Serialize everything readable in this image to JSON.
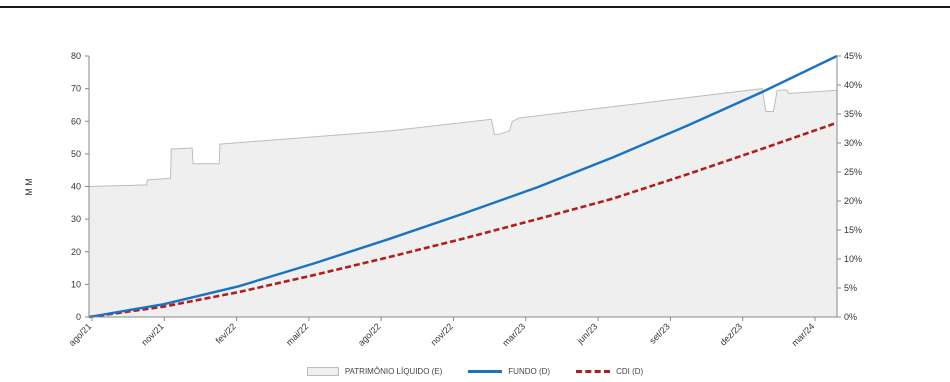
{
  "chart_data": {
    "type": "line",
    "ylabel": "M M",
    "y_left": {
      "min": 0,
      "max": 80,
      "ticks": [
        0,
        10,
        20,
        30,
        40,
        50,
        60,
        70,
        80
      ]
    },
    "y_right": {
      "min": 0,
      "max": 45,
      "ticks": [
        "0%",
        "5%",
        "10%",
        "15%",
        "20%",
        "25%",
        "30%",
        "35%",
        "40%",
        "45%"
      ]
    },
    "x_tick_labels": [
      "ago/21",
      "nov/21",
      "fev/22",
      "mai/22",
      "ago/22",
      "nov/22",
      "mar/23",
      "jun/23",
      "set/23",
      "dez/23",
      "mar/24"
    ],
    "series": [
      {
        "name": "PATRIMÔNIO LÍQUIDO (E)",
        "kind": "area",
        "axis": "left",
        "x": [
          0,
          0.077,
          0.078,
          0.109,
          0.11,
          0.138,
          0.139,
          0.174,
          0.175,
          0.4,
          0.42,
          0.538,
          0.542,
          0.548,
          0.562,
          0.566,
          0.575,
          0.9,
          0.905,
          0.915,
          0.92,
          0.933,
          0.935,
          1.0
        ],
        "y": [
          40,
          40.5,
          42,
          42.5,
          51.5,
          51.8,
          47,
          47,
          53,
          57,
          57.5,
          60.6,
          56,
          56,
          57,
          60,
          61,
          70,
          63,
          63,
          69.5,
          69.6,
          68.5,
          69.5
        ]
      },
      {
        "name": "FUNDO (D)",
        "kind": "line",
        "axis": "right",
        "x": [
          0,
          0.1,
          0.2,
          0.3,
          0.4,
          0.5,
          0.6,
          0.7,
          0.8,
          0.9,
          1.0
        ],
        "y": [
          0,
          2.2,
          5.3,
          9.2,
          13.4,
          17.8,
          22.4,
          27.5,
          33,
          38.8,
          45
        ]
      },
      {
        "name": "CDI (D)",
        "kind": "dashed-line",
        "axis": "right",
        "x": [
          0,
          0.1,
          0.2,
          0.3,
          0.4,
          0.5,
          0.6,
          0.7,
          0.8,
          0.9,
          1.0
        ],
        "y": [
          0,
          1.8,
          4.3,
          7.2,
          10.3,
          13.5,
          16.9,
          20.4,
          24.6,
          29,
          33.5
        ]
      }
    ],
    "grid": false,
    "legend_position": "bottom-center",
    "colors": {
      "area_fill": "#efefef",
      "area_stroke": "#bdbdbd",
      "fundo": "#1a73c0",
      "cdi": "#b01e1e"
    }
  },
  "legend": {
    "pl_label": "PATRIMÔNIO LÍQUIDO (E)",
    "fundo_label": "FUNDO (D)",
    "cdi_label": "CDI (D)"
  }
}
